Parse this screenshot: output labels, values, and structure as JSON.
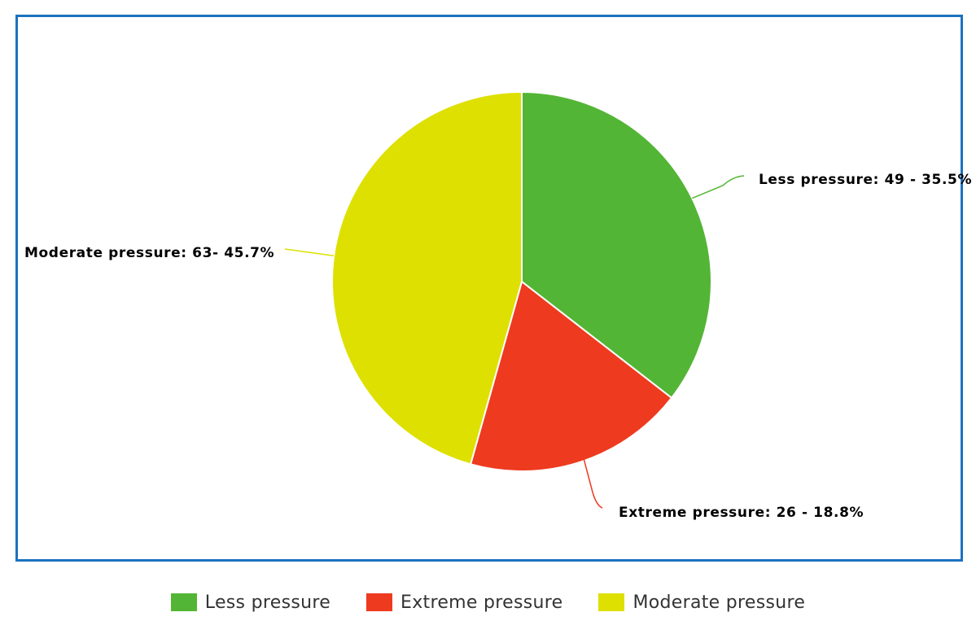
{
  "chart_data": {
    "type": "pie",
    "title": "",
    "slices": [
      {
        "name": "Less pressure",
        "value": 49,
        "percent": 35.5,
        "color": "#53b535",
        "label": "Less pressure: 49 - 35.5%"
      },
      {
        "name": "Extreme pressure",
        "value": 26,
        "percent": 18.8,
        "color": "#ee3a1f",
        "label": "Extreme pressure: 26 - 18.8%"
      },
      {
        "name": "Moderate pressure",
        "value": 63,
        "percent": 45.7,
        "color": "#dde000",
        "label": "Moderate pressure: 63- 45.7%"
      }
    ],
    "legend": {
      "placement": "bottom-center",
      "items": [
        "Less pressure",
        "Extreme pressure",
        "Moderate pressure"
      ]
    },
    "frame_color": "#1a73c0"
  }
}
